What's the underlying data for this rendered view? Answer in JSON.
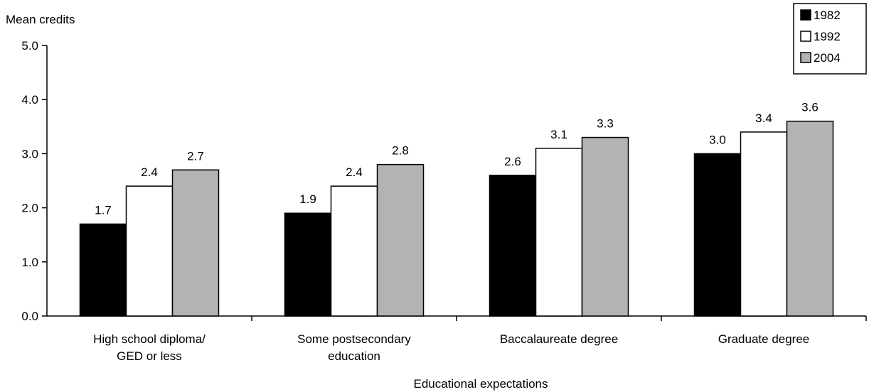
{
  "chart_data": {
    "type": "bar",
    "title": "",
    "ylabel": "Mean credits",
    "xlabel": "Educational expectations",
    "ylim": [
      0,
      5
    ],
    "yticks": [
      "0.0",
      "1.0",
      "2.0",
      "3.0",
      "4.0",
      "5.0"
    ],
    "categories": [
      [
        "High school diploma/",
        "GED or less"
      ],
      [
        "Some postsecondary",
        "education"
      ],
      [
        "Baccalaureate degree"
      ],
      [
        "Graduate degree"
      ]
    ],
    "series": [
      {
        "name": "1982",
        "color": "#000000",
        "values": [
          1.7,
          1.9,
          2.6,
          3.0
        ],
        "labels": [
          "1.7",
          "1.9",
          "2.6",
          "3.0"
        ]
      },
      {
        "name": "1992",
        "color": "#ffffff",
        "values": [
          2.4,
          2.4,
          3.1,
          3.4
        ],
        "labels": [
          "2.4",
          "2.4",
          "3.1",
          "3.4"
        ]
      },
      {
        "name": "2004",
        "color": "#b3b3b3",
        "values": [
          2.7,
          2.8,
          3.3,
          3.6
        ],
        "labels": [
          "2.7",
          "2.8",
          "3.3",
          "3.6"
        ]
      }
    ],
    "grid": false,
    "legend_position": "top-right"
  }
}
